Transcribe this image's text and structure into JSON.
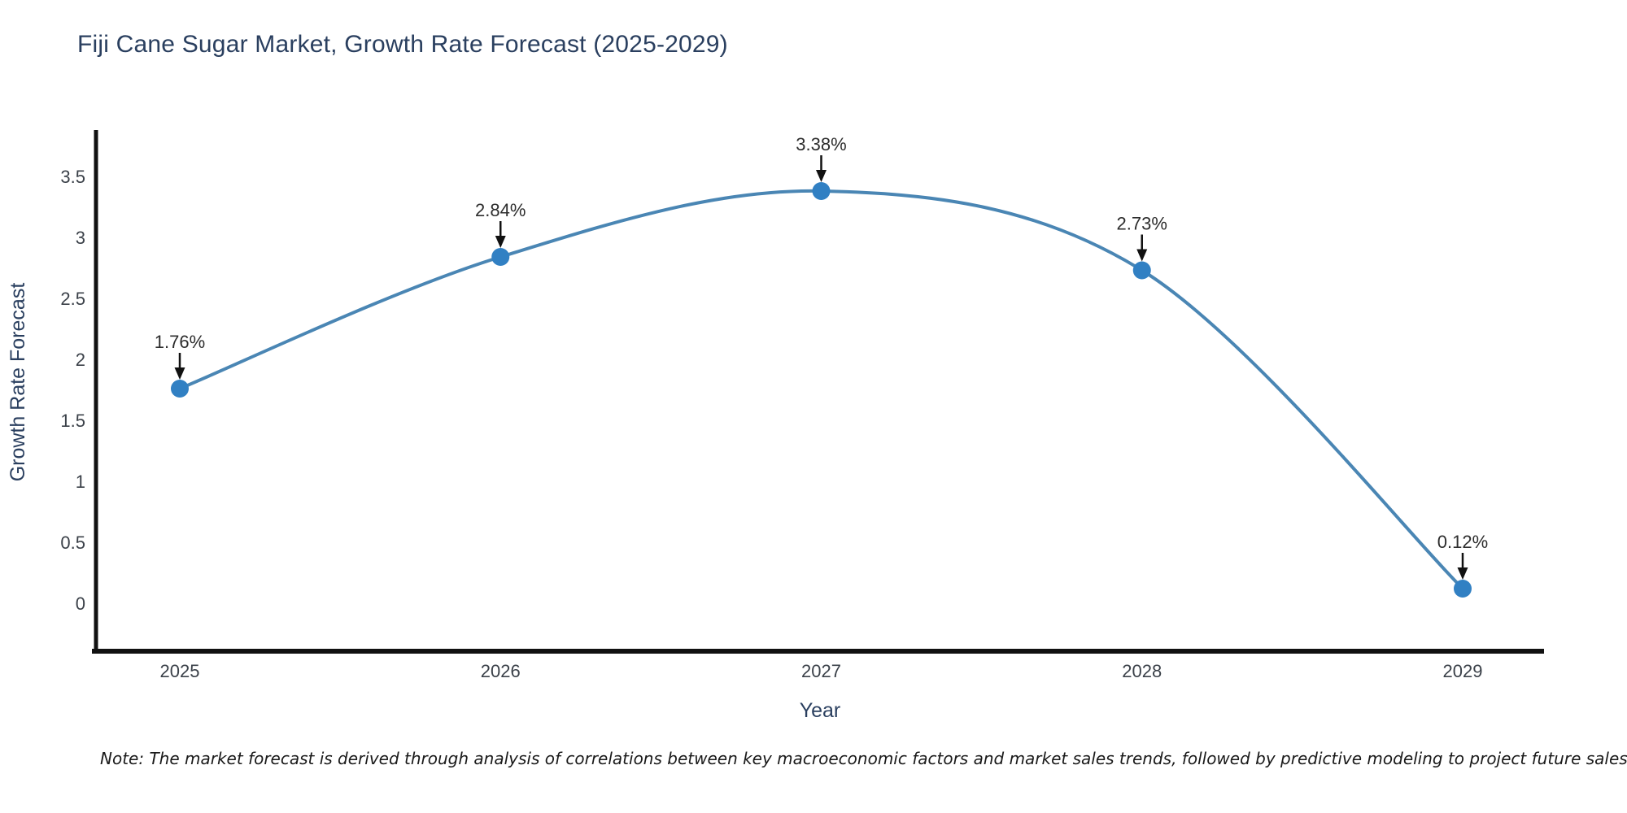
{
  "chart_data": {
    "type": "line",
    "curve": "spline",
    "title": "Fiji Cane Sugar Market, Growth Rate Forecast (2025-2029)",
    "xlabel": "Year",
    "ylabel": "Growth Rate Forecast",
    "categories": [
      "2025",
      "2026",
      "2027",
      "2028",
      "2029"
    ],
    "series": [
      {
        "name": "Growth Rate Forecast",
        "values": [
          1.76,
          2.84,
          3.38,
          2.73,
          0.12
        ]
      }
    ],
    "point_labels": [
      "1.76%",
      "2.84%",
      "3.38%",
      "2.73%",
      "0.12%"
    ],
    "yticks": [
      0,
      0.5,
      1,
      1.5,
      2,
      2.5,
      3,
      3.5
    ],
    "ytick_labels": [
      "0",
      "0.5",
      "1",
      "1.5",
      "2",
      "2.5",
      "3",
      "3.5"
    ],
    "ylim": [
      -0.42,
      3.88
    ],
    "grid": false,
    "legend": "none",
    "annotation_arrows": "down",
    "colors": {
      "line": "#4a86b4",
      "marker": "#3180c3",
      "axis": "#111111",
      "title_text": "#2a3f5f",
      "tick_text": "#3b4149",
      "annotation_text": "#2d2d2d",
      "note_text": "#1a1a1a",
      "background": "#ffffff"
    },
    "note": "Note: The market forecast is derived through analysis of correlations between key macroeconomic factors and market sales trends, followed by predictive modeling to project future sales"
  }
}
